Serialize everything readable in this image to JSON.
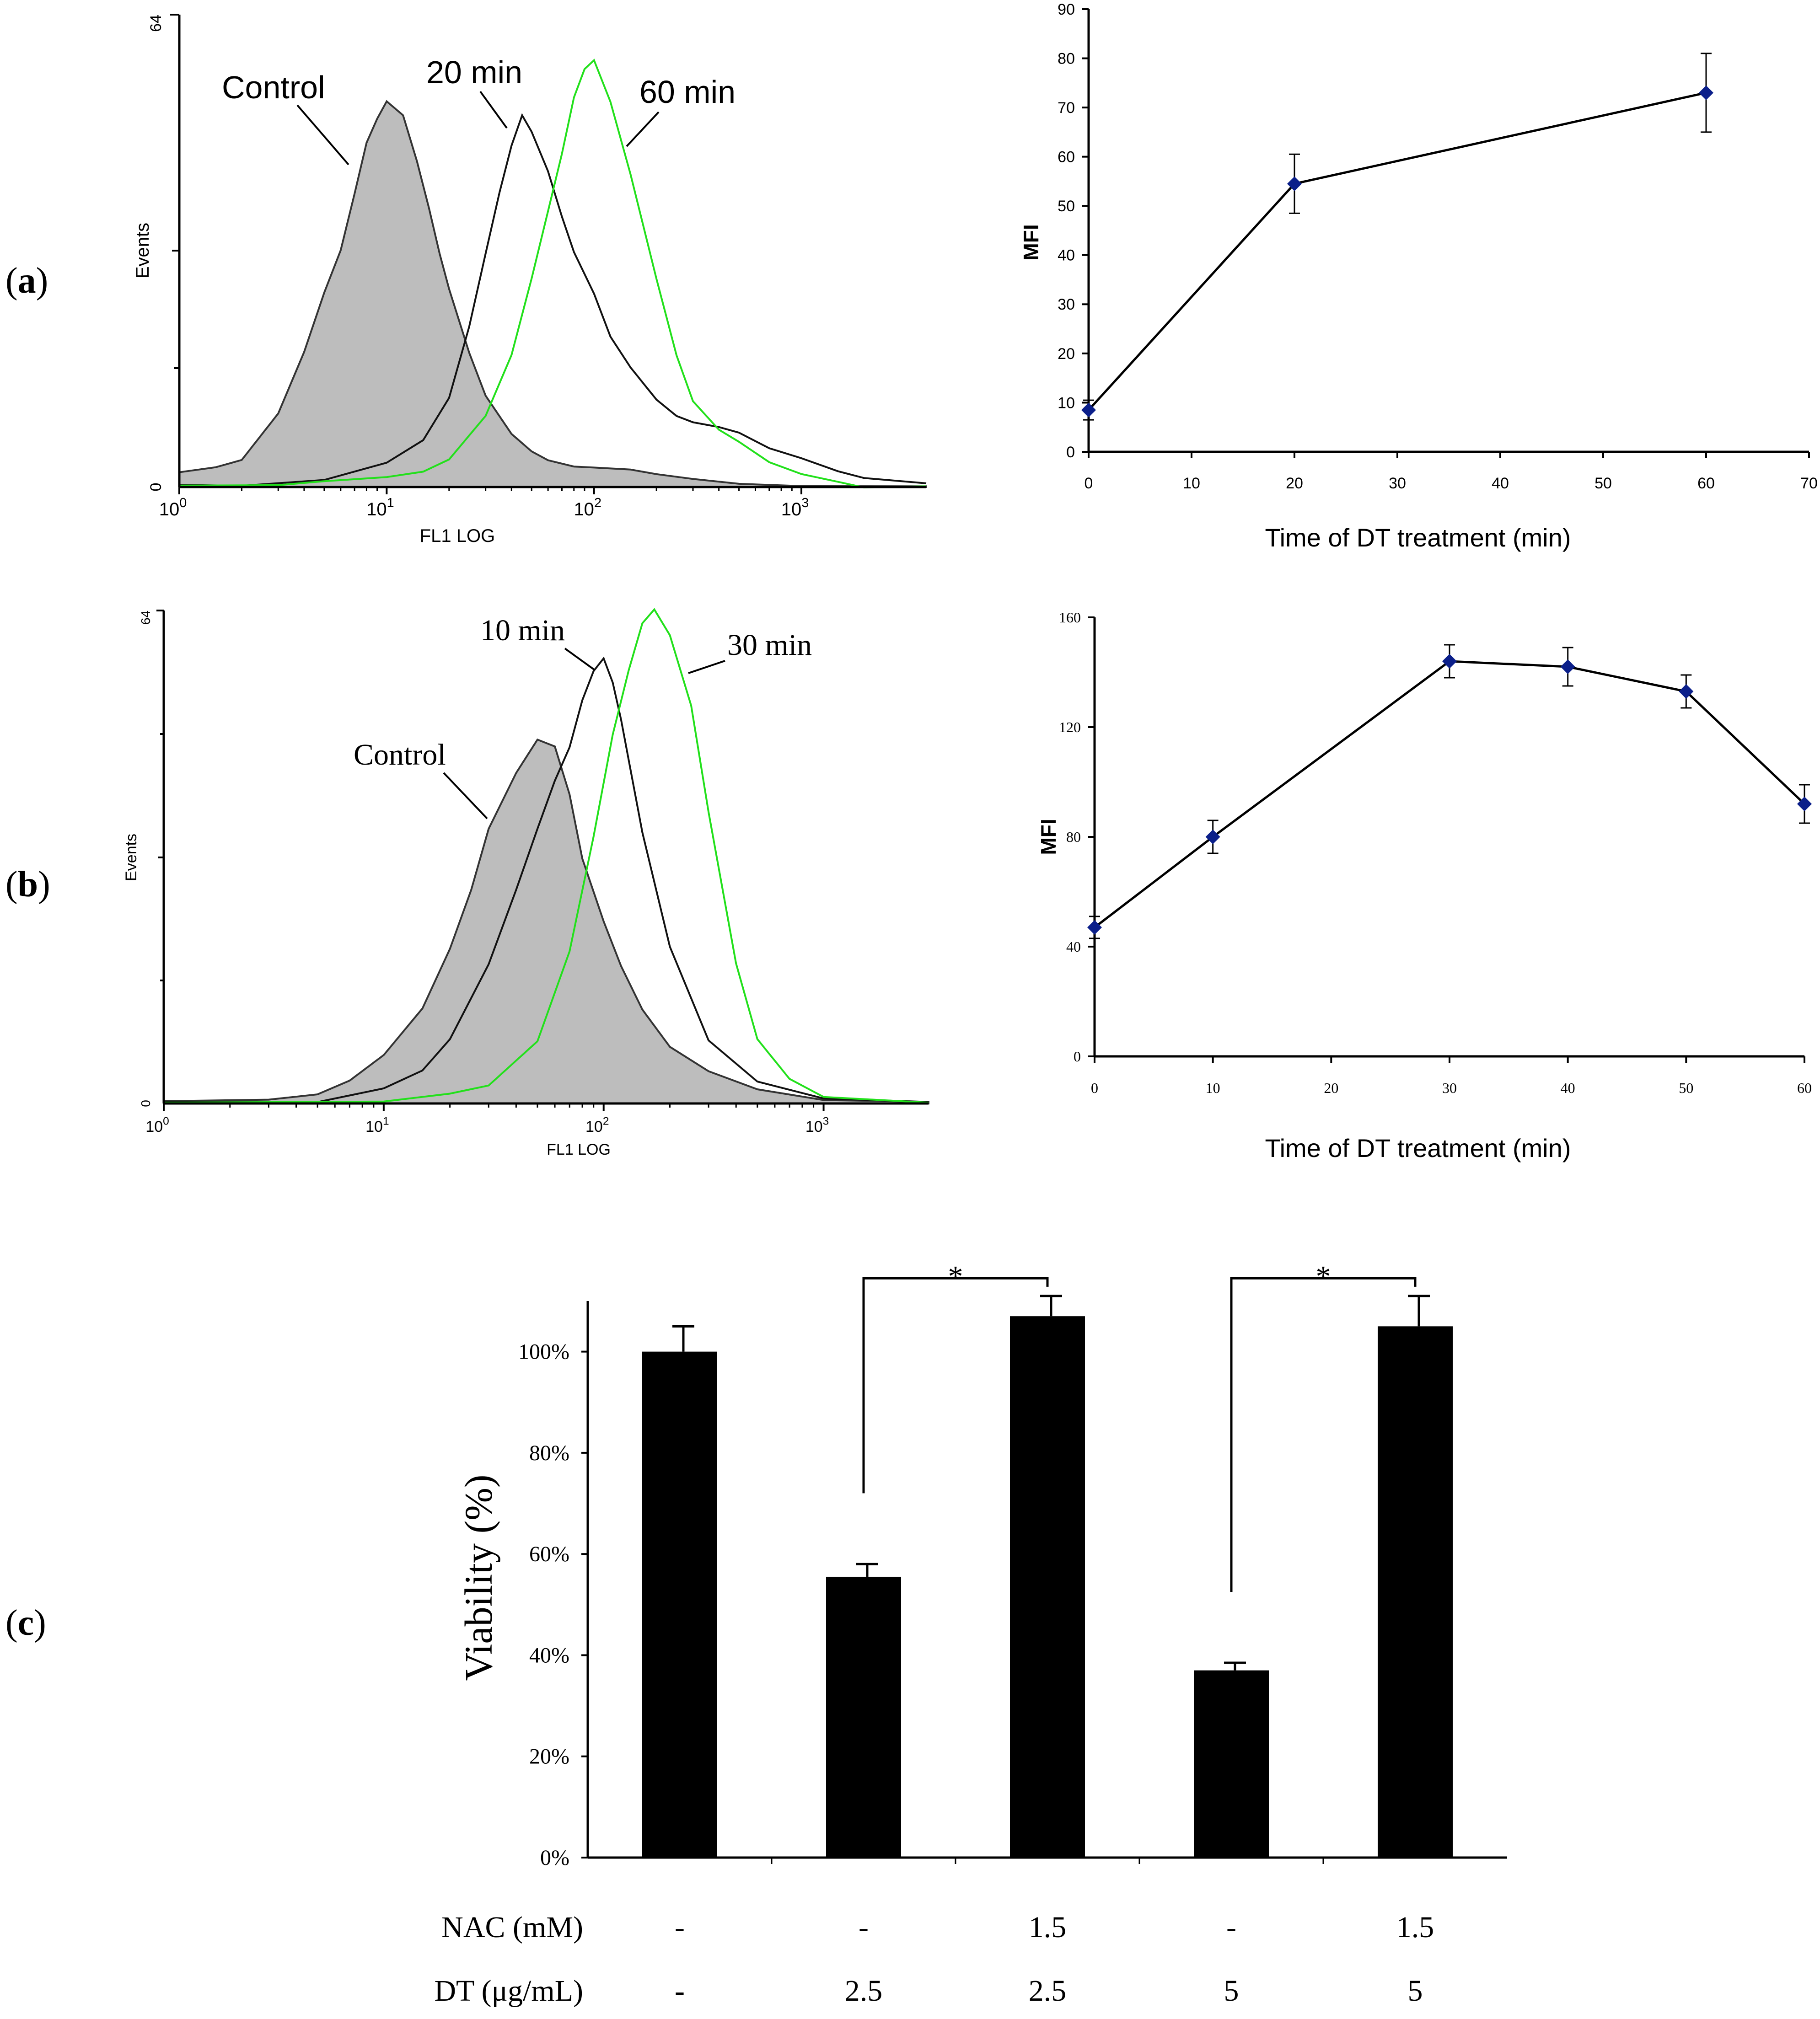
{
  "panels": {
    "a": {
      "label_open": "(",
      "label_letter": "a",
      "label_close": ")"
    },
    "b": {
      "label_open": "(",
      "label_letter": "b",
      "label_close": ")"
    },
    "c": {
      "label_open": "(",
      "label_letter": "c",
      "label_close": ")"
    }
  },
  "colors": {
    "control_fill": "#bdbdbd",
    "green": "#22e01b",
    "marker": "#0b1f8a",
    "bar": "#000000"
  },
  "chart_data": [
    {
      "id": "a-left",
      "type": "area",
      "title": "",
      "xlabel": "FL1 LOG",
      "ylabel": "Events",
      "xscale": "log",
      "xlim": [
        1,
        4000
      ],
      "ylim": [
        0,
        64
      ],
      "y_ticks": [
        "0",
        "64"
      ],
      "x_ticks": [
        {
          "base": "10",
          "exp": "0"
        },
        {
          "base": "10",
          "exp": "1"
        },
        {
          "base": "10",
          "exp": "2"
        },
        {
          "base": "10",
          "exp": "3"
        }
      ],
      "series": [
        {
          "name": "Control",
          "label": "Control",
          "style": "filled-gray",
          "x": [
            1,
            1.5,
            2,
            3,
            4,
            5,
            6,
            7,
            8,
            9,
            10,
            12,
            14,
            16,
            18,
            20,
            25,
            30,
            40,
            50,
            60,
            80,
            100,
            150,
            200,
            300,
            500,
            1000,
            4000
          ],
          "y": [
            2,
            3,
            4,
            10,
            18,
            26,
            32,
            40,
            47,
            50,
            52,
            50,
            44,
            38,
            32,
            27,
            18,
            12,
            7,
            5,
            4,
            3,
            2.5,
            2,
            1.5,
            1.2,
            0.8,
            0.4,
            0.1
          ]
        },
        {
          "name": "20 min",
          "label": "20 min",
          "style": "black-line",
          "x": [
            1,
            2,
            5,
            10,
            15,
            20,
            25,
            30,
            35,
            40,
            45,
            50,
            60,
            70,
            80,
            100,
            120,
            150,
            200,
            250,
            300,
            400,
            500,
            700,
            1000,
            1500,
            2000,
            4000
          ],
          "y": [
            0.3,
            0.5,
            1,
            3,
            6,
            12,
            22,
            32,
            40,
            46,
            50,
            48,
            43,
            37,
            32,
            26,
            20,
            16,
            12,
            10,
            9,
            8,
            7,
            5,
            4,
            2.5,
            1.5,
            0.5
          ]
        },
        {
          "name": "60 min",
          "label": "60 min",
          "style": "green-line",
          "x": [
            1,
            3,
            5,
            10,
            15,
            20,
            30,
            40,
            50,
            60,
            70,
            80,
            90,
            100,
            120,
            150,
            200,
            250,
            300,
            400,
            500,
            700,
            1000,
            1500,
            2000,
            4000
          ],
          "y": [
            0.2,
            0.3,
            0.5,
            1,
            2,
            4,
            10,
            18,
            28,
            37,
            45,
            53,
            57,
            58,
            52,
            42,
            28,
            18,
            12,
            8,
            6,
            3,
            1.5,
            0.8,
            0.3,
            0.1
          ]
        }
      ]
    },
    {
      "id": "a-right",
      "type": "line",
      "title": "",
      "xlabel": "Time of DT treatment (min)",
      "ylabel": "MFI",
      "xlim": [
        0,
        70
      ],
      "ylim": [
        0,
        90
      ],
      "x_ticks": [
        "0",
        "10",
        "20",
        "30",
        "40",
        "50",
        "60",
        "70"
      ],
      "y_ticks": [
        "0",
        "10",
        "20",
        "30",
        "40",
        "50",
        "60",
        "70",
        "80",
        "90"
      ],
      "x": [
        0,
        20,
        60
      ],
      "y": [
        8.5,
        54.5,
        73
      ],
      "err": [
        2,
        6,
        8
      ]
    },
    {
      "id": "b-left",
      "type": "area",
      "title": "",
      "xlabel": "FL1 LOG",
      "ylabel": "Events",
      "xscale": "log",
      "xlim": [
        1,
        3000
      ],
      "ylim": [
        0,
        64
      ],
      "y_ticks": [
        "0",
        "64"
      ],
      "x_ticks": [
        {
          "base": "10",
          "exp": "0"
        },
        {
          "base": "10",
          "exp": "1"
        },
        {
          "base": "10",
          "exp": "2"
        },
        {
          "base": "10",
          "exp": "3"
        }
      ],
      "series": [
        {
          "name": "Control",
          "label": "Control",
          "style": "filled-gray",
          "x": [
            1,
            3,
            5,
            7,
            10,
            15,
            20,
            25,
            30,
            40,
            50,
            60,
            70,
            80,
            100,
            120,
            150,
            200,
            300,
            500,
            1000,
            3000
          ],
          "y": [
            0.3,
            0.8,
            1.5,
            3,
            6,
            12,
            20,
            28,
            36,
            43,
            47,
            46,
            40,
            32,
            24,
            18,
            12,
            7,
            4,
            2,
            0.8,
            0.2
          ]
        },
        {
          "name": "10 min",
          "label": "10 min",
          "style": "black-line",
          "x": [
            1,
            5,
            10,
            15,
            20,
            30,
            40,
            50,
            60,
            70,
            80,
            90,
            100,
            110,
            120,
            150,
            200,
            300,
            500,
            1000,
            3000
          ],
          "y": [
            0.2,
            0.5,
            2,
            4,
            8,
            18,
            28,
            36,
            42,
            46,
            52,
            56,
            58,
            55,
            50,
            35,
            20,
            8,
            3,
            1,
            0.2
          ]
        },
        {
          "name": "30 min",
          "label": "30 min",
          "style": "green-line",
          "x": [
            1,
            10,
            20,
            30,
            50,
            70,
            90,
            110,
            130,
            150,
            170,
            200,
            250,
            300,
            400,
            500,
            700,
            1000,
            3000
          ],
          "y": [
            0.1,
            0.3,
            1,
            2,
            8,
            20,
            35,
            48,
            56,
            62,
            64,
            61,
            52,
            38,
            18,
            8,
            3,
            1,
            0.1
          ]
        }
      ]
    },
    {
      "id": "b-right",
      "type": "line",
      "title": "",
      "xlabel": "Time of DT treatment (min)",
      "ylabel": "MFI",
      "xlim": [
        0,
        60
      ],
      "ylim": [
        0,
        160
      ],
      "x_ticks": [
        "0",
        "10",
        "20",
        "30",
        "40",
        "50",
        "60"
      ],
      "y_ticks": [
        "0",
        "40",
        "80",
        "120",
        "160"
      ],
      "x": [
        0,
        10,
        30,
        40,
        50,
        60
      ],
      "y": [
        47,
        80,
        144,
        142,
        133,
        92
      ],
      "err": [
        4,
        6,
        6,
        7,
        6,
        7
      ]
    },
    {
      "id": "c",
      "type": "bar",
      "title": "",
      "xlabel": "",
      "ylabel": "Viability (%)",
      "ylim": [
        0,
        110
      ],
      "y_ticks": [
        "0%",
        "20%",
        "40%",
        "60%",
        "80%",
        "100%"
      ],
      "values": [
        100,
        55.5,
        107,
        37,
        105
      ],
      "err": [
        5,
        2.5,
        4,
        1.5,
        6
      ],
      "row_labels": [
        "NAC (mM)",
        "DT (μg/mL)"
      ],
      "nac": [
        "-",
        "-",
        "1.5",
        "-",
        "1.5"
      ],
      "dt": [
        "-",
        "2.5",
        "2.5",
        "5",
        "5"
      ],
      "significance": [
        {
          "from": 1,
          "to": 2,
          "label": "*"
        },
        {
          "from": 3,
          "to": 4,
          "label": "*"
        }
      ]
    }
  ]
}
